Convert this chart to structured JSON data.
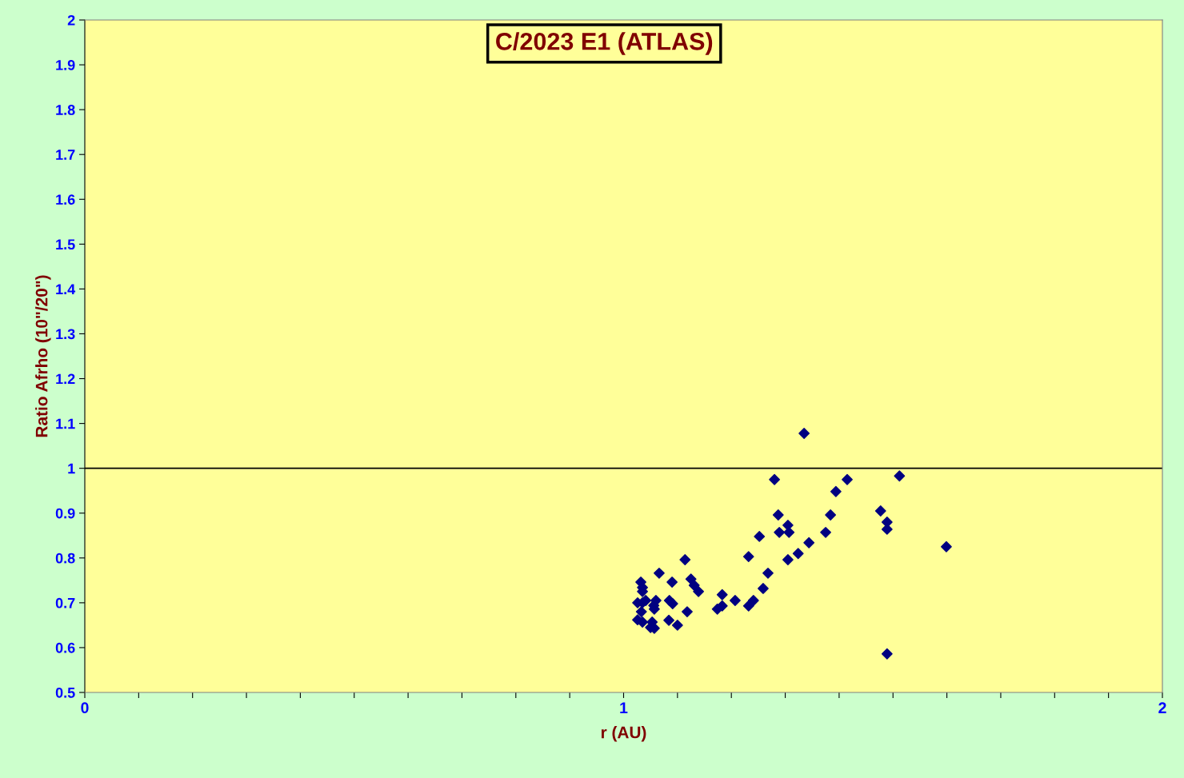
{
  "chart_data": {
    "type": "scatter",
    "title": "C/2023 E1 (ATLAS)",
    "xlabel": "r (AU)",
    "ylabel": "Ratio Afrho (10\"/20\")",
    "ref_lines": [
      {
        "axis": "y",
        "value": 1,
        "color": "#000000"
      }
    ],
    "xlim": [
      0,
      2
    ],
    "ylim": [
      0.5,
      2
    ],
    "xticks": [
      0,
      {
        "value": 0.1,
        "label": null
      },
      {
        "value": 0.2,
        "label": null
      },
      {
        "value": 0.3,
        "label": null
      },
      {
        "value": 0.4,
        "label": null
      },
      {
        "value": 0.5,
        "label": null
      },
      {
        "value": 0.6,
        "label": null
      },
      {
        "value": 0.7,
        "label": null
      },
      {
        "value": 0.8,
        "label": null
      },
      {
        "value": 0.9,
        "label": null
      },
      1,
      {
        "value": 1.1,
        "label": null
      },
      {
        "value": 1.2,
        "label": null
      },
      {
        "value": 1.3,
        "label": null
      },
      {
        "value": 1.4,
        "label": null
      },
      {
        "value": 1.5,
        "label": null
      },
      {
        "value": 1.6,
        "label": null
      },
      {
        "value": 1.7,
        "label": null
      },
      {
        "value": 1.8,
        "label": null
      },
      {
        "value": 1.9,
        "label": null
      },
      2
    ],
    "yticks": [
      0.5,
      0.6,
      0.7,
      0.8,
      0.9,
      1,
      1.1,
      1.2,
      1.3,
      1.4,
      1.5,
      1.6,
      1.7,
      1.8,
      1.9,
      2
    ],
    "grid": false,
    "marker": "diamond",
    "series": [
      {
        "color": "#000080",
        "x": [
          1.114,
          1.232,
          1.066,
          1.268,
          1.032,
          1.09,
          1.125,
          1.131,
          1.139,
          1.035,
          1.035,
          1.259,
          1.183,
          1.207,
          1.241,
          1.232,
          1.174,
          1.183,
          1.026,
          1.041,
          1.035,
          1.06,
          1.056,
          1.057,
          1.085,
          1.091,
          1.033,
          1.118,
          1.026,
          1.035,
          1.084,
          1.1,
          1.053,
          1.05,
          1.057,
          1.335,
          1.28,
          1.415,
          1.512,
          1.394,
          1.477,
          1.287,
          1.384,
          1.489,
          1.305,
          1.289,
          1.307,
          1.375,
          1.489,
          1.252,
          1.344,
          1.599,
          1.324,
          1.305,
          1.489
        ],
        "values": [
          0.796,
          0.803,
          0.766,
          0.766,
          0.746,
          0.746,
          0.753,
          0.739,
          0.725,
          0.734,
          0.725,
          0.732,
          0.718,
          0.705,
          0.705,
          0.693,
          0.686,
          0.693,
          0.7,
          0.705,
          0.7,
          0.705,
          0.694,
          0.686,
          0.705,
          0.698,
          0.68,
          0.68,
          0.662,
          0.657,
          0.661,
          0.65,
          0.657,
          0.645,
          0.643,
          1.078,
          0.975,
          0.975,
          0.983,
          0.948,
          0.905,
          0.896,
          0.896,
          0.88,
          0.873,
          0.857,
          0.857,
          0.857,
          0.864,
          0.848,
          0.834,
          0.825,
          0.81,
          0.796,
          0.586
        ]
      }
    ]
  }
}
